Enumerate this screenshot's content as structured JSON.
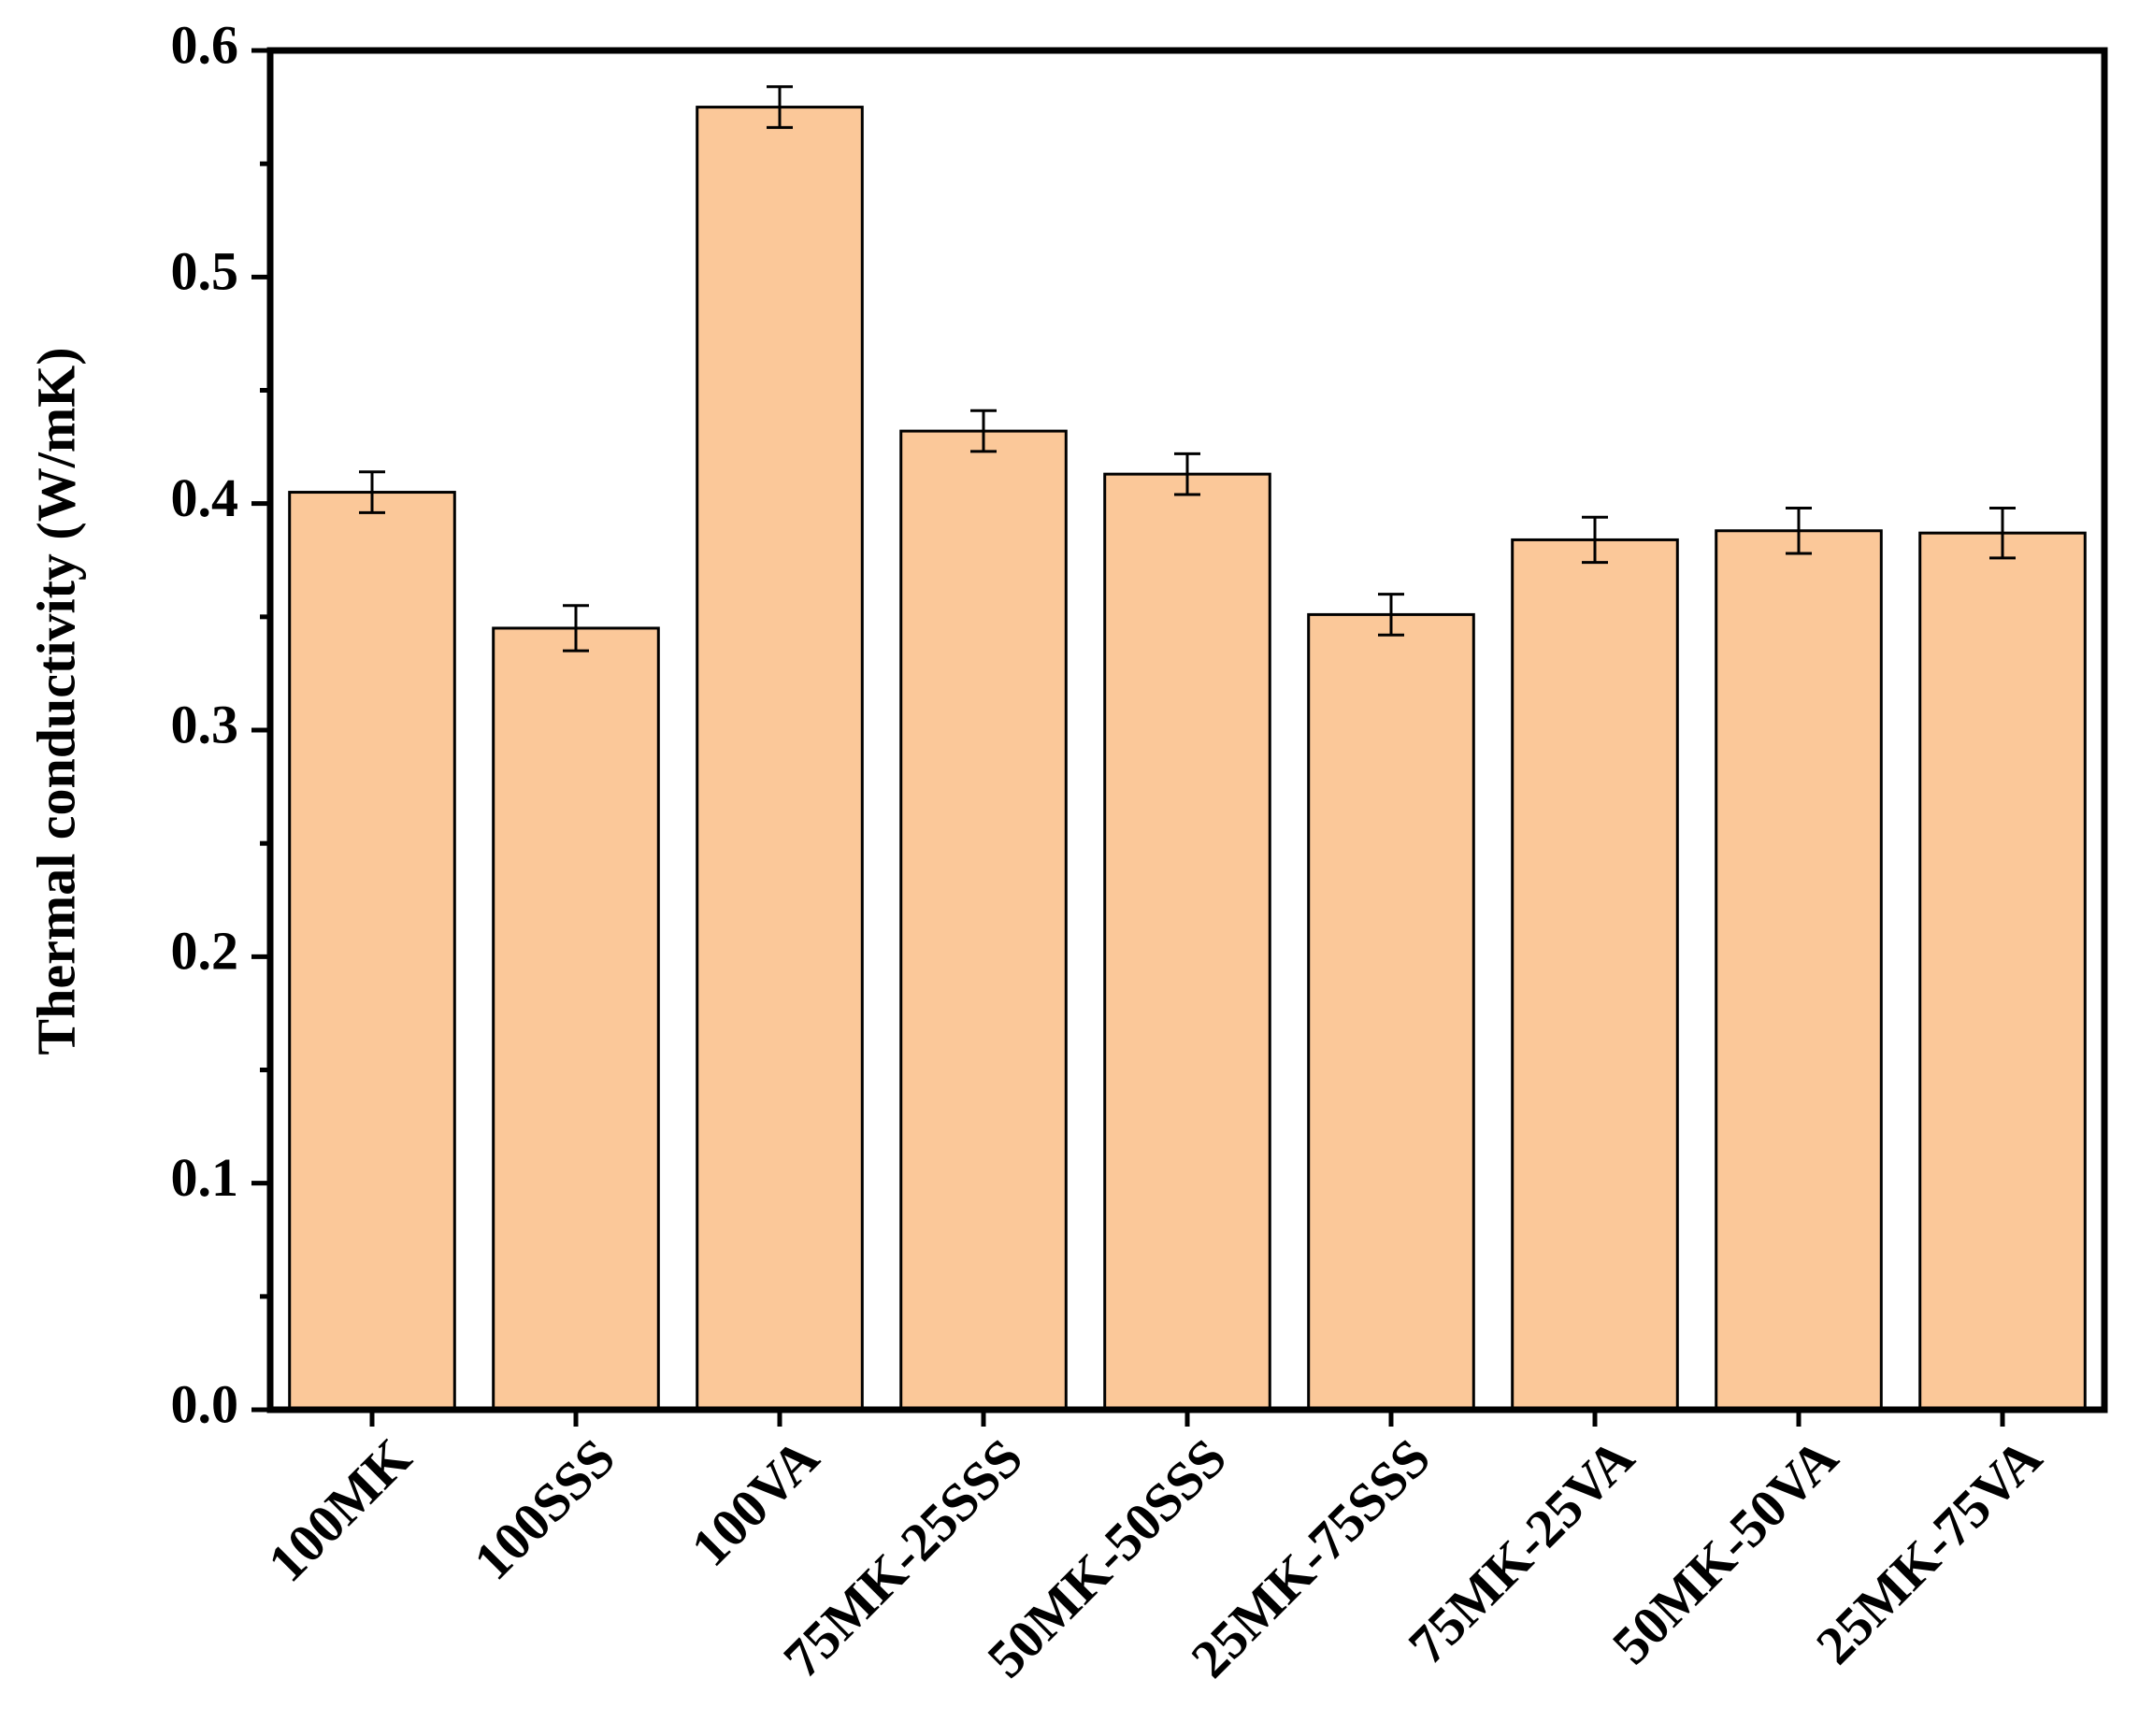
{
  "chart_data": {
    "type": "bar",
    "y_label": "Thermal conductivity (W/mK)",
    "categories": [
      "100MK",
      "100SSS",
      "100VA",
      "75MK-25SSS",
      "50MK-50SSS",
      "25MK-75SSS",
      "75MK-25VA",
      "50MK-50VA",
      "25MK-75VA"
    ],
    "values": [
      0.405,
      0.345,
      0.575,
      0.432,
      0.413,
      0.351,
      0.384,
      0.388,
      0.387
    ],
    "errors": [
      0.009,
      0.01,
      0.009,
      0.009,
      0.009,
      0.009,
      0.01,
      0.01,
      0.011
    ],
    "color": "#fbc899",
    "ylim": [
      0,
      0.6
    ],
    "yticks": [
      {
        "value": 0,
        "label": "0.0"
      },
      0.1,
      0.2,
      0.3,
      0.4,
      0.5,
      0.6
    ],
    "yminorticks": [
      0.05,
      0.15,
      0.25,
      0.35,
      0.45,
      0.55
    ]
  }
}
